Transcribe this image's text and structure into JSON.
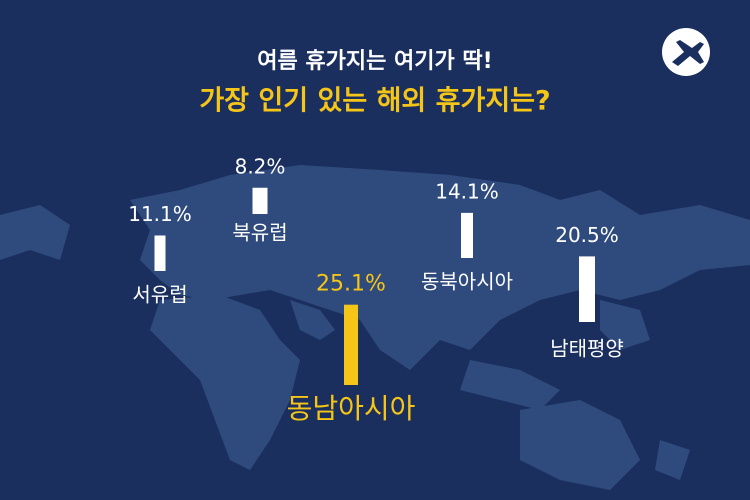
{
  "title": "여름 휴가지는 여기가 딱!",
  "chart_data": {
    "type": "bar",
    "title": "가장 인기 있는 해외 휴가지는?",
    "categories": [
      "서유럽",
      "북유럽",
      "동남아시아",
      "동북아시아",
      "남태평양"
    ],
    "values": [
      11.1,
      8.2,
      25.1,
      14.1,
      20.5
    ],
    "value_labels": [
      "11.1%",
      "8.2%",
      "25.1%",
      "14.1%",
      "20.5%"
    ],
    "colors": [
      "#ffffff",
      "#ffffff",
      "#f5c518",
      "#ffffff",
      "#ffffff"
    ]
  }
}
